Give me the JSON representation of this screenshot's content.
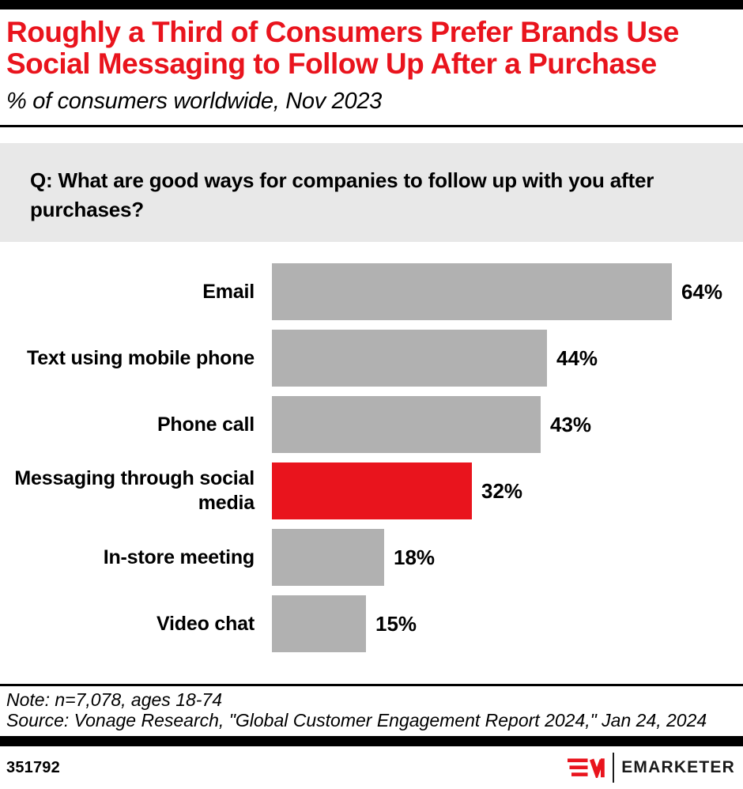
{
  "header": {
    "title_line1": "Roughly a Third of Consumers Prefer Brands Use",
    "title_line2": "Social Messaging to Follow Up After a Purchase",
    "subtitle": "% of consumers worldwide, Nov 2023"
  },
  "question": "Q: What are good ways for companies to follow up with you after purchases?",
  "chart_data": {
    "type": "bar",
    "orientation": "horizontal",
    "title": "Roughly a Third of Consumers Prefer Brands Use Social Messaging to Follow Up After a Purchase",
    "subtitle": "% of consumers worldwide, Nov 2023",
    "categories": [
      "Email",
      "Text using mobile phone",
      "Phone call",
      "Messaging through social media",
      "In-store meeting",
      "Video chat"
    ],
    "values": [
      64,
      44,
      43,
      32,
      18,
      15
    ],
    "value_labels": [
      "64%",
      "44%",
      "43%",
      "32%",
      "18%",
      "15%"
    ],
    "highlight_index": 3,
    "bar_color": "#b1b1b1",
    "highlight_color": "#e9141d",
    "xlim": [
      0,
      71.5
    ],
    "grid": false,
    "legend": false
  },
  "colors": {
    "accent_red": "#e9141d",
    "bar_gray": "#b1b1b1",
    "question_box_bg": "#e8e8e8",
    "rule_black": "#000000"
  },
  "footer": {
    "note": "Note: n=7,078, ages 18-74",
    "source": "Source: Vonage Research, \"Global Customer Engagement Report 2024,\" Jan 24, 2024",
    "chart_number": "351792",
    "brand_name": "EMARKETER"
  }
}
